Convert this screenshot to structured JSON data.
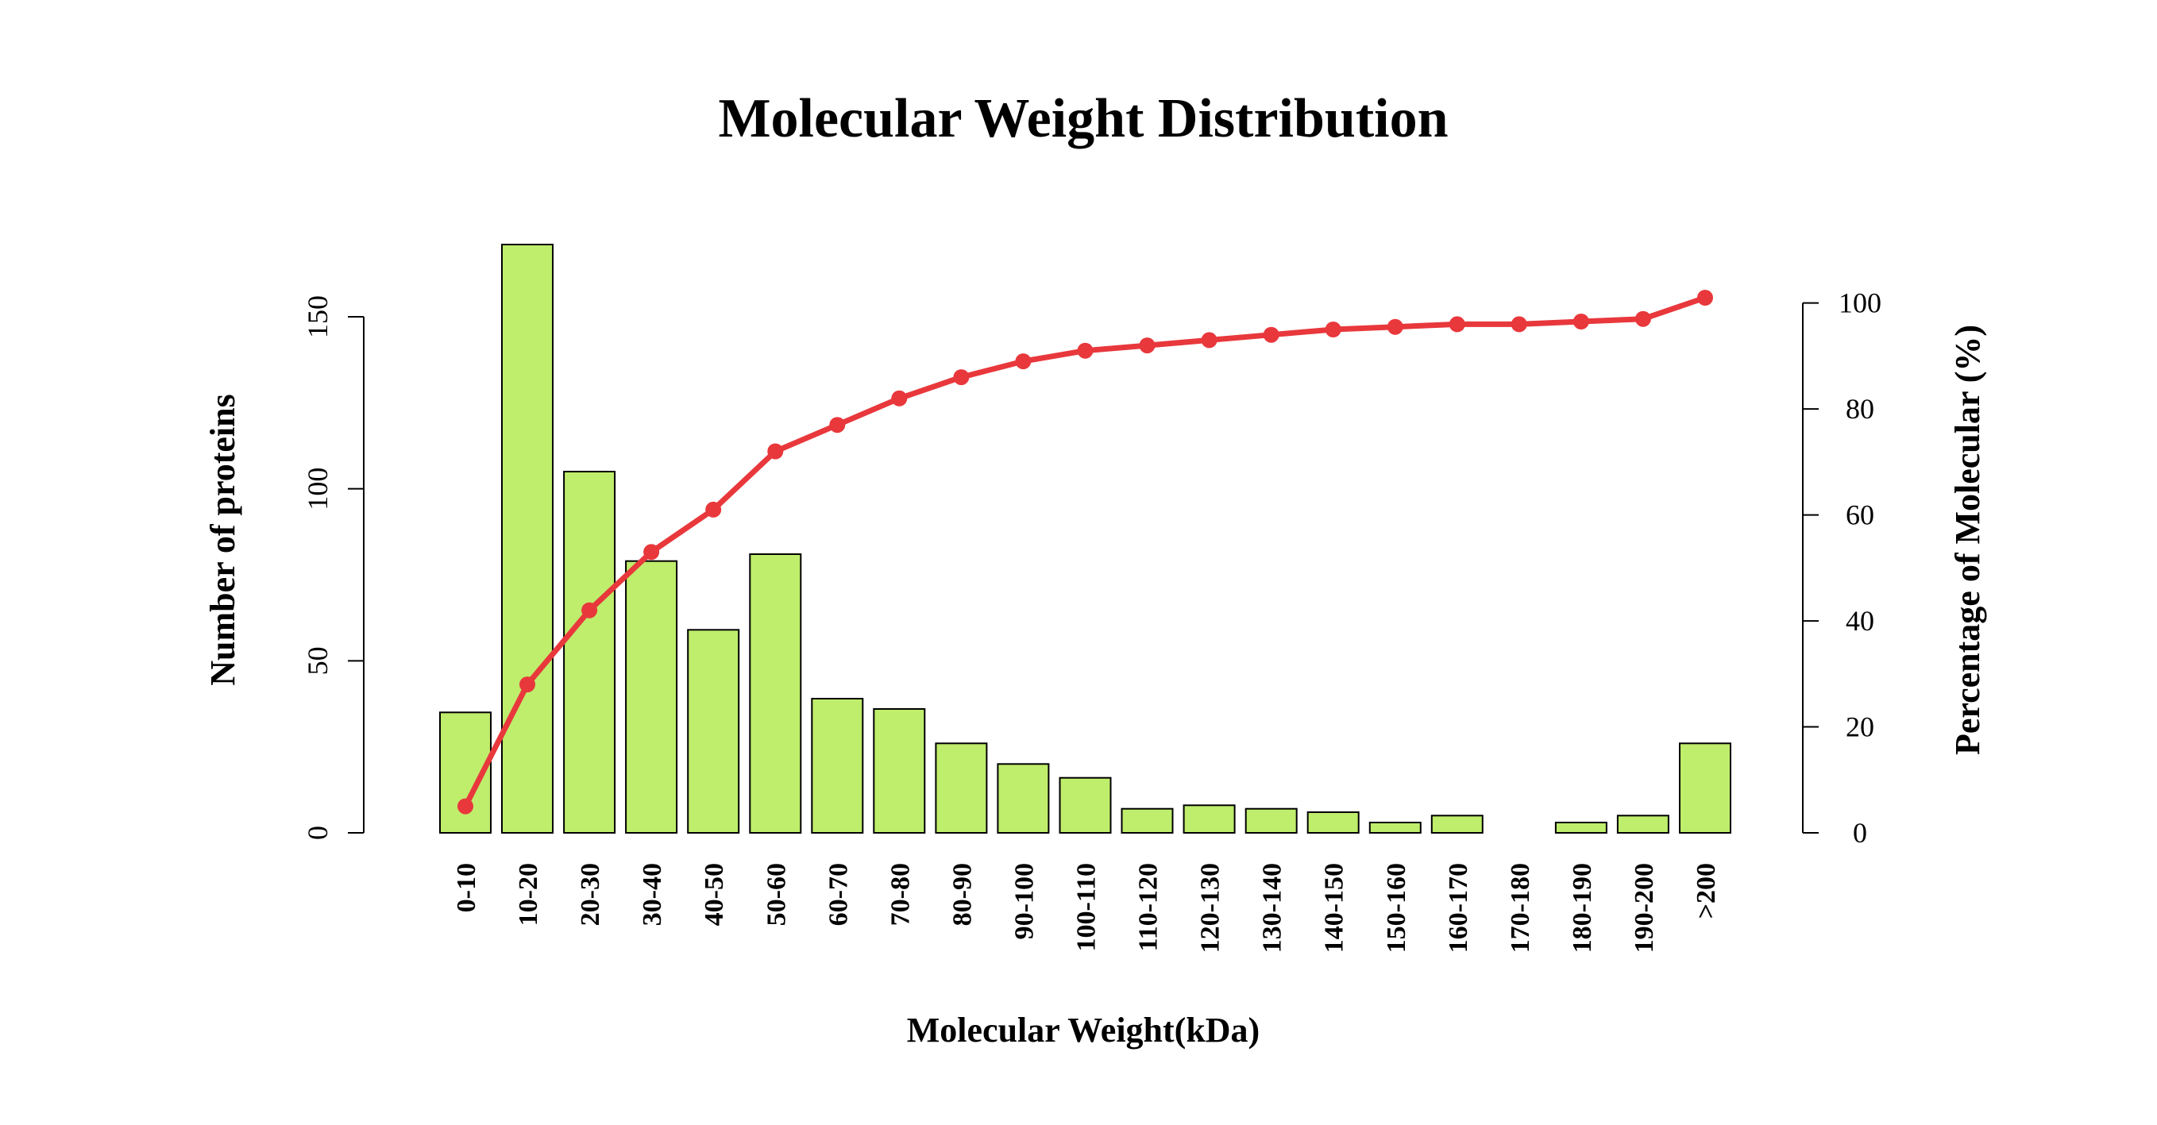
{
  "chart_data": {
    "type": "bar",
    "title": "Molecular Weight Distribution",
    "xlabel": "Molecular Weight(kDa)",
    "ylabel": "Number of proteins",
    "y2label": "Percentage of Molecular (%)",
    "categories": [
      "0-10",
      "10-20",
      "20-30",
      "30-40",
      "40-50",
      "50-60",
      "60-70",
      "70-80",
      "80-90",
      "90-100",
      "100-110",
      "110-120",
      "120-130",
      "130-140",
      "140-150",
      "150-160",
      "160-170",
      "170-180",
      "180-190",
      "190-200",
      ">200"
    ],
    "series": [
      {
        "type": "bar",
        "axis": "left",
        "color": "#bfed6c",
        "values": [
          35,
          171,
          105,
          79,
          59,
          81,
          39,
          36,
          26,
          20,
          16,
          7,
          8,
          7,
          6,
          3,
          5,
          0,
          3,
          5,
          26
        ]
      },
      {
        "type": "line",
        "axis": "right",
        "color": "#e8383c",
        "values": [
          5,
          28,
          42,
          53,
          61,
          72,
          77,
          82,
          86,
          89,
          91,
          92,
          93,
          94,
          95,
          95.5,
          96,
          96,
          96.5,
          97,
          101
        ]
      }
    ],
    "yticks": [
      0,
      50,
      100,
      150
    ],
    "ylim": [
      0,
      171
    ],
    "y2ticks": [
      0,
      20,
      40,
      60,
      80,
      100
    ],
    "y2lim": [
      0,
      101
    ],
    "grid": false,
    "legend": "none"
  }
}
